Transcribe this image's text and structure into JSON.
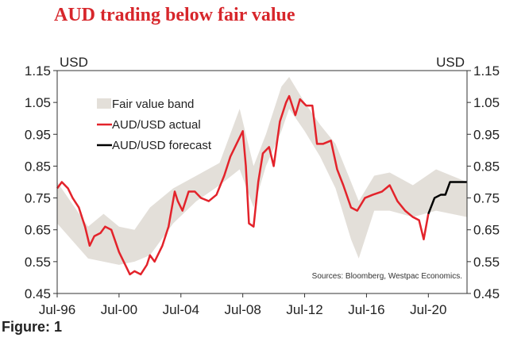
{
  "title": "AUD trading below fair value",
  "figure_label": "Figure: 1",
  "chart_data": {
    "type": "line",
    "title": "AUD trading below fair value",
    "ylabel_left": "USD",
    "ylabel_right": "USD",
    "ylim": [
      0.45,
      1.15
    ],
    "yticks": [
      "1.15",
      "1.05",
      "0.95",
      "0.85",
      "0.75",
      "0.65",
      "0.55",
      "0.45"
    ],
    "xticks": [
      {
        "label": "Jul-96",
        "x": 1996.5
      },
      {
        "label": "Jul-00",
        "x": 2000.5
      },
      {
        "label": "Jul-04",
        "x": 2004.5
      },
      {
        "label": "Jul-08",
        "x": 2008.5
      },
      {
        "label": "Jul-12",
        "x": 2012.5
      },
      {
        "label": "Jul-16",
        "x": 2016.5
      },
      {
        "label": "Jul-20",
        "x": 2020.5
      }
    ],
    "xlim": [
      1996.5,
      2023.0
    ],
    "legend_position": "top-left",
    "source": "Sources: Bloomberg, Westpac Economics.",
    "band": {
      "name": "Fair value band",
      "color": "#e3dfd9",
      "x": [
        1996.5,
        1998.5,
        1999.5,
        2000.5,
        2001.5,
        2002.5,
        2004,
        2005.5,
        2007,
        2008.3,
        2009.2,
        2010,
        2011,
        2011.5,
        2012.5,
        2013.5,
        2014.5,
        2015.5,
        2016,
        2017,
        2018,
        2019.5,
        2021,
        2023
      ],
      "lower": [
        0.67,
        0.56,
        0.55,
        0.54,
        0.55,
        0.57,
        0.67,
        0.74,
        0.79,
        0.84,
        0.72,
        0.85,
        0.96,
        1.03,
        0.96,
        0.88,
        0.78,
        0.62,
        0.56,
        0.71,
        0.71,
        0.69,
        0.71,
        0.69
      ],
      "upper": [
        0.8,
        0.66,
        0.7,
        0.66,
        0.65,
        0.72,
        0.78,
        0.82,
        0.86,
        1.03,
        0.85,
        0.95,
        1.1,
        1.13,
        1.05,
        0.98,
        0.92,
        0.8,
        0.74,
        0.82,
        0.83,
        0.79,
        0.84,
        0.8
      ]
    },
    "series": [
      {
        "name": "AUD/USD actual",
        "color": "#e3232b",
        "x": [
          1996.5,
          1996.8,
          1997.2,
          1997.5,
          1997.9,
          1998.3,
          1998.6,
          1998.9,
          1999.3,
          1999.6,
          2000.0,
          2000.5,
          2000.8,
          2001.2,
          2001.5,
          2001.9,
          2002.3,
          2002.5,
          2002.8,
          2003.3,
          2003.7,
          2004.1,
          2004.3,
          2004.6,
          2005.0,
          2005.4,
          2005.8,
          2006.3,
          2006.8,
          2007.3,
          2007.7,
          2008.0,
          2008.5,
          2008.7,
          2008.9,
          2009.2,
          2009.5,
          2009.8,
          2010.2,
          2010.5,
          2010.9,
          2011.3,
          2011.5,
          2011.9,
          2012.2,
          2012.6,
          2013.0,
          2013.3,
          2013.7,
          2014.2,
          2014.6,
          2015.0,
          2015.5,
          2015.9,
          2016.4,
          2016.9,
          2017.5,
          2018.0,
          2018.5,
          2019.0,
          2019.5,
          2019.9,
          2020.2,
          2020.5
        ],
        "y": [
          0.78,
          0.8,
          0.78,
          0.75,
          0.72,
          0.66,
          0.6,
          0.63,
          0.64,
          0.66,
          0.65,
          0.58,
          0.55,
          0.51,
          0.52,
          0.51,
          0.54,
          0.57,
          0.55,
          0.6,
          0.66,
          0.77,
          0.74,
          0.71,
          0.77,
          0.77,
          0.75,
          0.74,
          0.76,
          0.82,
          0.88,
          0.91,
          0.96,
          0.85,
          0.67,
          0.66,
          0.8,
          0.89,
          0.91,
          0.85,
          0.99,
          1.05,
          1.07,
          1.01,
          1.06,
          1.04,
          1.04,
          0.92,
          0.92,
          0.93,
          0.84,
          0.79,
          0.72,
          0.71,
          0.75,
          0.76,
          0.77,
          0.79,
          0.74,
          0.71,
          0.69,
          0.68,
          0.62,
          0.7
        ]
      },
      {
        "name": "AUD/USD forecast",
        "color": "#000000",
        "x": [
          2020.5,
          2020.9,
          2021.3,
          2021.6,
          2021.9,
          2023.0
        ],
        "y": [
          0.7,
          0.75,
          0.76,
          0.76,
          0.8,
          0.8
        ]
      }
    ]
  }
}
